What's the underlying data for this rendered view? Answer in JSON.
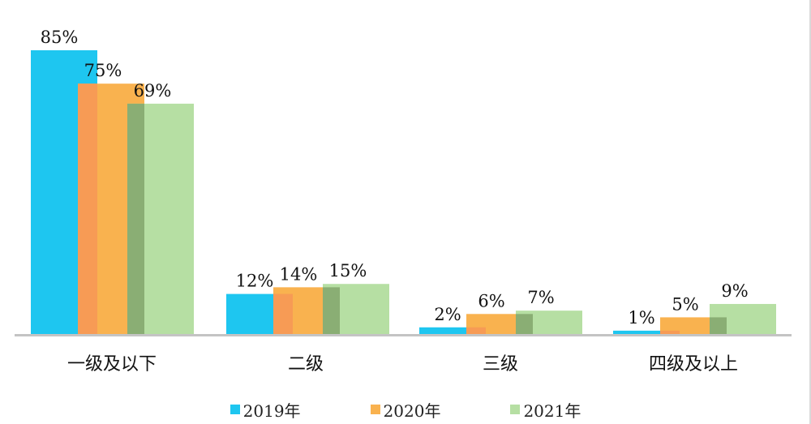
{
  "chart_data": {
    "type": "bar",
    "categories": [
      "一级及以下",
      "二级",
      "三级",
      "四级及以上"
    ],
    "series": [
      {
        "name": "2019年",
        "values": [
          85,
          12,
          2,
          1
        ],
        "labels": [
          "85%",
          "12%",
          "2%",
          "1%"
        ],
        "color": "#1ec6f0"
      },
      {
        "name": "2020年",
        "values": [
          75,
          14,
          6,
          5
        ],
        "labels": [
          "75%",
          "14%",
          "6%",
          "5%"
        ],
        "color": "#f9b24f"
      },
      {
        "name": "2021年",
        "values": [
          69,
          15,
          7,
          9
        ],
        "labels": [
          "69%",
          "15%",
          "7%",
          "9%"
        ],
        "color": "#b6dfa3"
      }
    ],
    "ylim": [
      0,
      100
    ],
    "grid": false,
    "legend_position": "bottom"
  },
  "colors": {
    "axis": "#c4c4c4",
    "overlap_2019_2020": "#f79b55",
    "overlap_2020_2021": "#8aae74"
  }
}
